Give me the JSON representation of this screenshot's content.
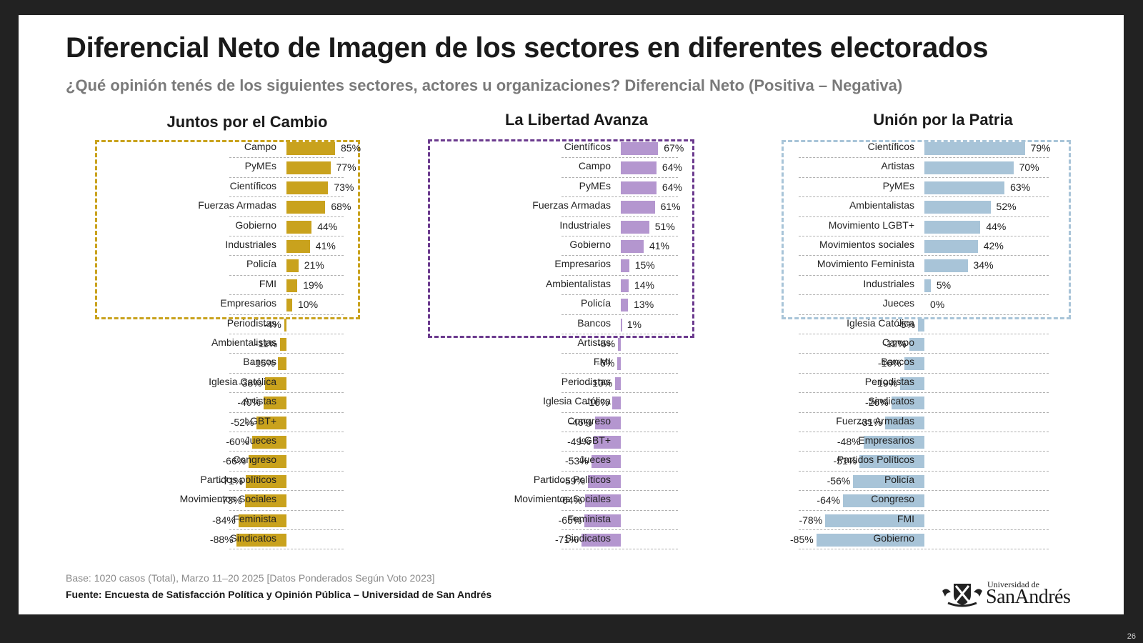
{
  "slide": {
    "title": "Diferencial Neto de Imagen de los sectores en diferentes electorados",
    "subtitle": "¿Qué opinión tenés de los siguientes sectores, actores u organizaciones? Diferencial Neto (Positiva – Negativa)",
    "base_note": "Base: 1020 casos (Total), Marzo 11–20 2025 [Datos Ponderados Según Voto 2023]",
    "source_note": "Fuente: Encuesta de Satisfacción Política y Opinión Pública – Universidad de San Andrés",
    "logo_small": "Universidad de",
    "logo_big": "SanAndrés",
    "logo_icon": "university-crest-icon",
    "page_number": "26"
  },
  "chart_data": [
    {
      "type": "bar",
      "orientation": "horizontal",
      "title": "Juntos por el Cambio",
      "color": "#C9A21D",
      "value_suffix": "%",
      "highlight": "dashed box around positive values",
      "categories": [
        "Campo",
        "PyMEs",
        "Científicos",
        "Fuerzas Armadas",
        "Gobierno",
        "Industriales",
        "Policía",
        "FMI",
        "Empresarios",
        "Periodistas",
        "Ambientalistas",
        "Bancos",
        "Iglesia Católica",
        "Artistas",
        "LGBT+",
        "Jueces",
        "Congreso",
        "Partidos políticos",
        "Movimientos Sociales",
        "Feminista",
        "Sindicatos"
      ],
      "values": [
        85,
        77,
        73,
        68,
        44,
        41,
        21,
        19,
        10,
        -4,
        -11,
        -15,
        -38,
        -40,
        -52,
        -60,
        -66,
        -71,
        -73,
        -84,
        -88
      ]
    },
    {
      "type": "bar",
      "orientation": "horizontal",
      "title": "La Libertad Avanza",
      "color": "#B496CF",
      "box_color": "#6B3A8E",
      "value_suffix": "%",
      "highlight": "dashed box around positive values",
      "categories": [
        "Científicos",
        "Campo",
        "PyMEs",
        "Fuerzas Armadas",
        "Industriales",
        "Gobierno",
        "Empresarios",
        "Ambientalistas",
        "Policía",
        "Bancos",
        "Artistas",
        "FMI",
        "Periodistas",
        "Iglesia Católica",
        "Congreso",
        "LGBT+",
        "Jueces",
        "Partidos Políticos",
        "Movimientos Sociales",
        "Feminista",
        "Sindicatos"
      ],
      "values": [
        67,
        64,
        64,
        61,
        51,
        41,
        15,
        14,
        13,
        1,
        -5,
        -6,
        -10,
        -16,
        -46,
        -49,
        -53,
        -59,
        -64,
        -65,
        -71
      ]
    },
    {
      "type": "bar",
      "orientation": "horizontal",
      "title": "Unión por la Patria",
      "color": "#A8C4D8",
      "value_suffix": "%",
      "highlight": "dashed box around positive values",
      "categories": [
        "Científicos",
        "Artistas",
        "PyMEs",
        "Ambientalistas",
        "Movimiento LGBT+",
        "Movimientos sociales",
        "Movimiento Feminista",
        "Industriales",
        "Jueces",
        "Iglesia Católica",
        "Campo",
        "Bancos",
        "Periodistas",
        "Sindicatos",
        "Fuerzas Armadas",
        "Empresarios",
        "Partidos Políticos",
        "Policía",
        "Congreso",
        "FMI",
        "Gobierno"
      ],
      "values": [
        79,
        70,
        63,
        52,
        44,
        42,
        34,
        5,
        0,
        -5,
        -12,
        -16,
        -19,
        -26,
        -31,
        -48,
        -51,
        -56,
        -64,
        -78,
        -85
      ]
    }
  ]
}
